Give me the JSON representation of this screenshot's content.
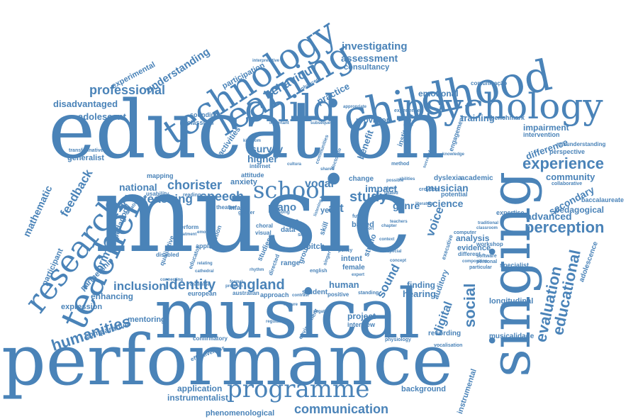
{
  "colors": {
    "word": "#4a83b8",
    "background": "#ffffff"
  },
  "words": {
    "music": "music",
    "education": "education",
    "performance": "performance",
    "musical": "musical",
    "singing": "singing",
    "childhood": "childhood",
    "psychology": "psychology",
    "technology": "technology",
    "learning": "learning",
    "child": "child",
    "teacher": "teacher",
    "research": "research",
    "school": "school",
    "programme": "programme",
    "experience": "experience",
    "perception": "perception",
    "evaluation": "evaluation",
    "educational": "educational",
    "humanities": "humanities",
    "social": "social",
    "identity": "identity",
    "england": "england",
    "inclusion": "inclusion",
    "chorister": "chorister",
    "teaching": "teaching",
    "speech": "speech",
    "study": "study",
    "vocal": "vocal",
    "professional": "professional",
    "understanding": "understanding",
    "behaviour": "behaviour",
    "communication": "communication",
    "feedback": "feedback",
    "investigating": "investigating",
    "assessment": "assessment",
    "disadvantaged": "disadvantaged",
    "adolescent": "adolescent",
    "primary": "primary",
    "mathematic": "mathematic",
    "digital": "digital",
    "sound": "sound",
    "voice": "voice",
    "art": "art",
    "piano": "piano",
    "survey": "survey",
    "higher": "higher",
    "national": "national",
    "musician": "musician",
    "genre": "genre",
    "science": "science",
    "impact": "impact",
    "secondary": "secondary",
    "advanced": "advanced",
    "pedagogical": "pedagogical",
    "community": "community",
    "difference": "difference",
    "impairment": "impairment",
    "emotional": "emotional",
    "training": "training",
    "hearing": "hearing",
    "finding": "finding",
    "human": "human",
    "application": "application",
    "instrumentalist": "instrumentalist",
    "background": "background",
    "phenomenological": "phenomenological",
    "instrumental": "instrumental",
    "enhancing": "enhancing",
    "mentoring": "mentoring",
    "comparative": "comparative",
    "expression": "expression",
    "participant": "participant",
    "partnership": "partnership",
    "pedagogy": "pedagogy",
    "experimental": "experimental",
    "generalist": "generalist",
    "transformative": "transformative",
    "participation": "participation",
    "consultancy": "consultancy",
    "practice": "practice",
    "activities": "activities",
    "sounding": "sounding",
    "classical": "classical",
    "benefit": "benefit",
    "provision": "provision",
    "institution": "institution",
    "analysis": "analysis",
    "evidence": "evidence",
    "workshop": "workshop",
    "specialist": "specialist",
    "longitudinal": "longitudinal",
    "musicalidade": "musicalidade",
    "recording": "recording",
    "project": "project",
    "interview": "interview",
    "adolescence": "adolescence",
    "baccalaureate": "baccalaureate",
    "expertise": "expertise",
    "misunderstanding": "misunderstanding",
    "perspective": "perspective",
    "collaborative": "collaborative",
    "intervention": "intervention",
    "benchmark": "benchmark",
    "dyslexia": "dyslexia",
    "academic": "academic",
    "potential": "potential",
    "croydon": "croydon",
    "change": "change",
    "year": "year",
    "value": "value",
    "data": "data",
    "based": "based",
    "intent": "intent",
    "female": "female",
    "pitch": "pitch",
    "studio": "studio",
    "range": "range",
    "group": "group",
    "skill": "skill",
    "studies": "studies",
    "usability": "usability",
    "infant": "infant",
    "attitude": "attitude",
    "anxiety": "anxiety",
    "internet": "internet",
    "mapping": "mapping",
    "creativity": "creativity",
    "qualitative": "qualitative",
    "applied": "applied",
    "disabled": "disabled",
    "educator": "educator",
    "european": "european",
    "australian": "australian",
    "approach": "approach",
    "student": "student",
    "positive": "positive",
    "standing": "standing",
    "auditory": "auditory",
    "communicação": "comunicação",
    "enhanced": "enhanced",
    "interpretative": "interpretative",
    "engagement": "engagement",
    "software": "software",
    "personal": "personal",
    "computer": "computer",
    "different": "different",
    "particular": "particular",
    "executive": "executive",
    "experienced": "experienced",
    "confirmatory": "confirmatory",
    "effectiveness": "effectiveness",
    "environment": "environment",
    "physiology": "physiology",
    "vocalisation": "vocalisation",
    "composition": "composition",
    "function": "function",
    "theatre": "theatre",
    "reading": "reading",
    "perform": "perform",
    "kingdom": "kingdom",
    "important": "important",
    "subsequent": "subsequent",
    "cultura": "cultura",
    "shared": "shared",
    "communities": "communities",
    "doctorate": "doctorate",
    "phase": "phase",
    "method": "method",
    "music_sm": "music",
    "related": "related",
    "future": "future",
    "report": "report",
    "policy": "policy",
    "singer": "singer",
    "english": "english",
    "context": "context",
    "teachers": "teachers",
    "choral": "choral",
    "directed": "directed",
    "visual": "visual",
    "song": "song",
    "gender": "gender",
    "formal": "formal",
    "rhythm": "rhythm",
    "sing": "sing",
    "emotion": "emotion",
    "treatment": "treatment",
    "negative": "negative",
    "feature": "feature",
    "regulation": "regulation",
    "possible": "possible",
    "abilities": "abilities",
    "literature": "literature",
    "traditional": "traditional",
    "classroom": "classroom",
    "knowledge": "knowledge",
    "successful": "successful",
    "chapter": "chapter",
    "special": "special",
    "concept": "concept",
    "expert": "expert",
    "relating": "relating",
    "cathedral": "cathedral",
    "challenge": "challenge",
    "program": "program",
    "contrast": "contrast",
    "connecting": "connecting",
    "appropriate": "appropriate",
    "listening": "listening"
  }
}
